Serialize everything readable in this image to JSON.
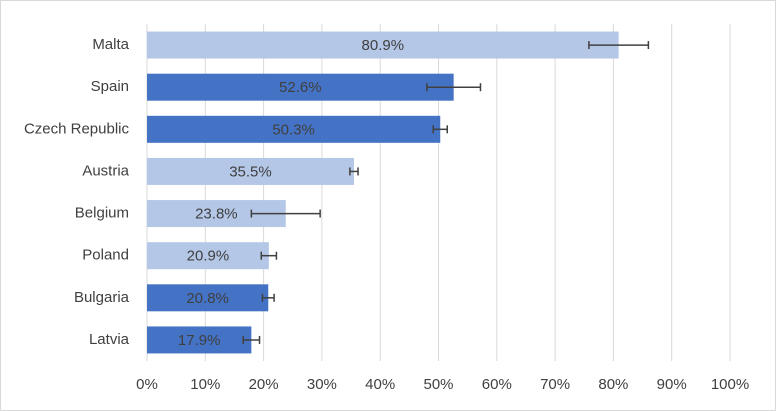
{
  "chart_data": {
    "type": "hbar",
    "categories": [
      "Malta",
      "Spain",
      "Czech Republic",
      "Austria",
      "Belgium",
      "Poland",
      "Bulgaria",
      "Latvia"
    ],
    "values": [
      80.9,
      52.6,
      50.3,
      35.5,
      23.8,
      20.9,
      20.8,
      17.9
    ],
    "value_labels": [
      "80.9%",
      "52.6%",
      "50.3%",
      "35.5%",
      "23.8%",
      "20.9%",
      "20.8%",
      "17.9%"
    ],
    "errors": [
      5.1,
      4.6,
      1.2,
      0.7,
      5.9,
      1.3,
      1.0,
      1.4
    ],
    "colors": [
      "#b4c7e7",
      "#4472c4",
      "#4472c4",
      "#b4c7e7",
      "#b4c7e7",
      "#b4c7e7",
      "#4472c4",
      "#4472c4"
    ],
    "xlim": [
      0,
      100
    ],
    "xticks": [
      {
        "value": 0,
        "label": "0%"
      },
      {
        "value": 10,
        "label": "10%"
      },
      {
        "value": 20,
        "label": "20%"
      },
      {
        "value": 30,
        "label": "30%"
      },
      {
        "value": 40,
        "label": "40%"
      },
      {
        "value": 50,
        "label": "50%"
      },
      {
        "value": 60,
        "label": "60%"
      },
      {
        "value": 70,
        "label": "70%"
      },
      {
        "value": 80,
        "label": "80%"
      },
      {
        "value": 90,
        "label": "90%"
      },
      {
        "value": 100,
        "label": "100%"
      }
    ],
    "grid": true
  }
}
